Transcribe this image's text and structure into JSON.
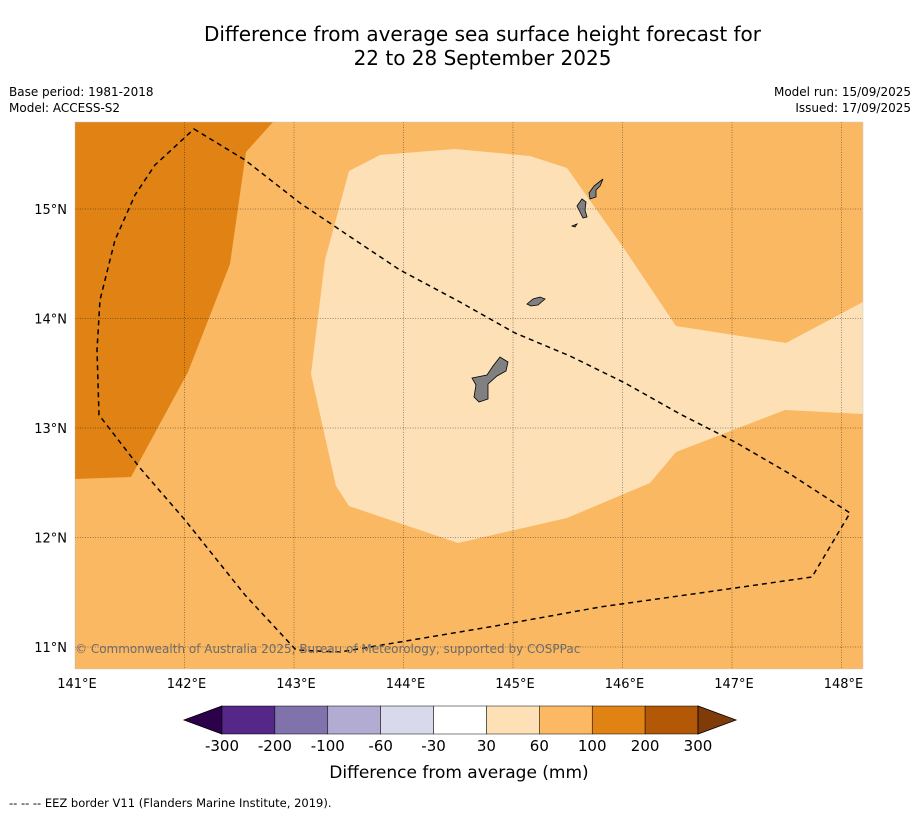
{
  "title_line1": "Difference from average sea surface height forecast for",
  "title_line2": "22 to 28 September 2025",
  "base_period": "Base period: 1981-2018",
  "model": "Model: ACCESS-S2",
  "model_run": "Model run: 15/09/2025",
  "issued": "Issued: 17/09/2025",
  "map": {
    "lat_ticks": [
      {
        "value": 15,
        "label": "15°N"
      },
      {
        "value": 14,
        "label": "14°N"
      },
      {
        "value": 13,
        "label": "13°N"
      },
      {
        "value": 12,
        "label": "12°N"
      },
      {
        "value": 11,
        "label": "11°N"
      }
    ],
    "lon_ticks": [
      {
        "value": 141,
        "label": "141°E"
      },
      {
        "value": 142,
        "label": "142°E"
      },
      {
        "value": 143,
        "label": "143°E"
      },
      {
        "value": 144,
        "label": "144°E"
      },
      {
        "value": 145,
        "label": "145°E"
      },
      {
        "value": 146,
        "label": "146°E"
      },
      {
        "value": 147,
        "label": "147°E"
      },
      {
        "value": 148,
        "label": "148°E"
      }
    ],
    "copyright": "© Commonwealth of Australia 2025, Bureau of Meteorology, supported by COSPPac"
  },
  "colorbar": {
    "label": "Difference from average (mm)",
    "ticks": [
      "-300",
      "-200",
      "-100",
      "-60",
      "-30",
      "30",
      "60",
      "100",
      "200",
      "300"
    ],
    "colors": {
      "under": "#2d004b",
      "bins": [
        "#542788",
        "#8073ac",
        "#b2abd2",
        "#d8daeb",
        "#ffffff",
        "#fee0b6",
        "#fdb863",
        "#e08214",
        "#b35806"
      ],
      "over": "#7f3b08"
    }
  },
  "footer": "-- -- -- EEZ border V11 (Flanders Marine Institute, 2019)."
}
